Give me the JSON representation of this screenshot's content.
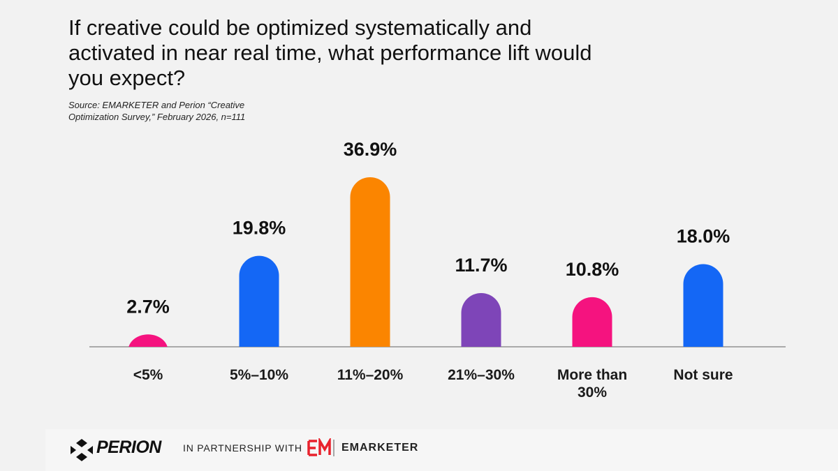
{
  "chart_data": {
    "type": "bar",
    "title": "If creative could be optimized systematically and activated in near real time, what performance lift would you expect?",
    "subtitle": "Source: EMARKETER and Perion “Creative Optimization Survey,” February 2026, n=111",
    "categories": [
      "<5%",
      "5%–10%",
      "11%–20%",
      "21%–30%",
      "More than 30%",
      "Not sure"
    ],
    "values": [
      2.7,
      19.8,
      36.9,
      11.7,
      10.8,
      18.0
    ],
    "value_labels": [
      "2.7%",
      "19.8%",
      "36.9%",
      "11.7%",
      "10.8%",
      "18.0%"
    ],
    "colors": [
      "#f5137f",
      "#1467f5",
      "#fb8500",
      "#7e45b8",
      "#f5137f",
      "#1467f5"
    ]
  },
  "footer": {
    "brand": "PERION",
    "partnership": "IN PARTNERSHIP WITH",
    "partner": "EMARKETER"
  }
}
